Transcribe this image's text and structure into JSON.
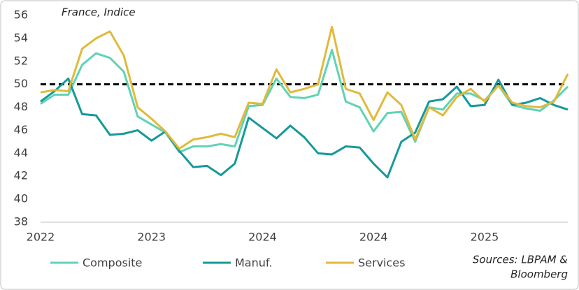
{
  "chart_data": {
    "type": "line",
    "title": "France, Indice",
    "source": [
      "Sources: LBPAM &",
      "Bloomberg"
    ],
    "categories": [
      "2022",
      null,
      null,
      null,
      null,
      null,
      null,
      null,
      "2023",
      null,
      null,
      null,
      null,
      null,
      null,
      null,
      "2024",
      null,
      null,
      null,
      null,
      null,
      null,
      null,
      "2024",
      null,
      null,
      null,
      null,
      null,
      null,
      null,
      "2025",
      null,
      null,
      null,
      null,
      null,
      null
    ],
    "ylim": [
      38,
      56
    ],
    "yticks": [
      38,
      40,
      42,
      44,
      46,
      48,
      50,
      52,
      54,
      56
    ],
    "reference_line": 50,
    "grid": false,
    "legend": "bottom",
    "series": [
      {
        "name": "Composite",
        "color": "#5fd3b5",
        "values": [
          48.3,
          49.1,
          49.1,
          51.7,
          52.7,
          52.3,
          51.1,
          47.2,
          46.5,
          45.8,
          44.1,
          44.6,
          44.6,
          44.8,
          44.6,
          48.1,
          48.2,
          50.5,
          48.9,
          48.8,
          49.1,
          53.0,
          48.5,
          48.0,
          45.9,
          47.5,
          47.6,
          45.0,
          48.0,
          47.8,
          49.2,
          49.2,
          48.6,
          49.9,
          48.2,
          47.9,
          47.7,
          48.6,
          49.8
        ]
      },
      {
        "name": "Manuf.",
        "color": "#16999a",
        "values": [
          48.5,
          49.4,
          50.5,
          47.4,
          47.3,
          45.6,
          45.7,
          46.0,
          45.1,
          45.9,
          44.2,
          42.8,
          42.9,
          42.1,
          43.1,
          47.1,
          46.2,
          45.3,
          46.4,
          45.4,
          44.0,
          43.9,
          44.6,
          44.5,
          43.1,
          41.9,
          45.0,
          45.8,
          48.5,
          48.7,
          49.8,
          48.1,
          48.2,
          50.4,
          48.2,
          48.4,
          48.8,
          48.2,
          47.8
        ]
      },
      {
        "name": "Services",
        "color": "#e2b93b",
        "values": [
          49.3,
          49.5,
          49.4,
          53.1,
          54.0,
          54.6,
          52.5,
          48.0,
          47.0,
          45.9,
          44.4,
          45.2,
          45.4,
          45.7,
          45.4,
          48.4,
          48.3,
          51.3,
          49.3,
          49.6,
          50.0,
          55.0,
          49.6,
          49.2,
          46.9,
          49.3,
          48.2,
          45.2,
          48.0,
          47.3,
          48.9,
          49.6,
          48.5,
          49.9,
          48.4,
          48.1,
          48.0,
          48.5,
          50.9
        ]
      }
    ]
  }
}
